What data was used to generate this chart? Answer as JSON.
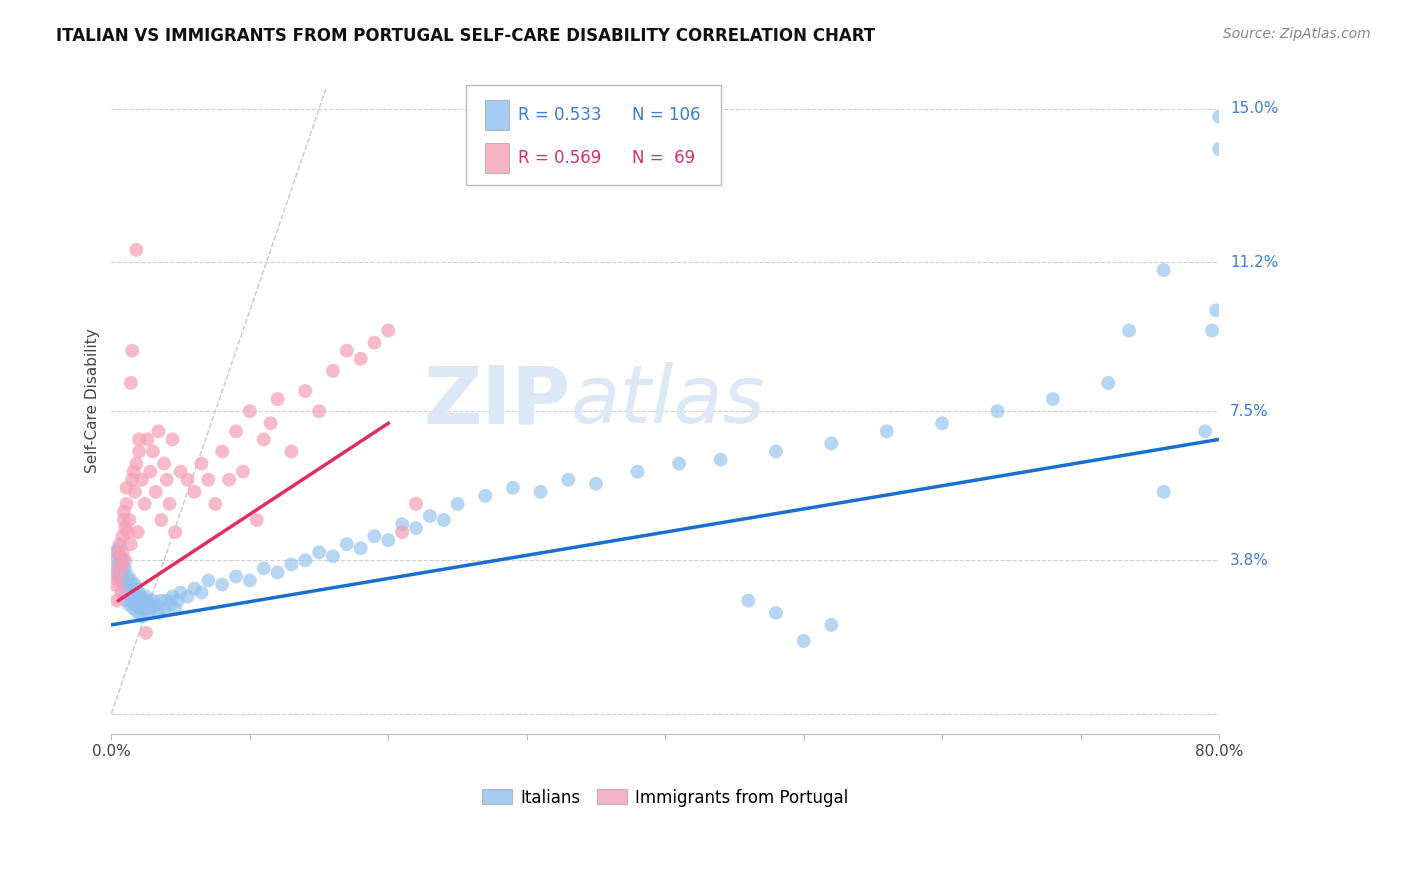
{
  "title": "ITALIAN VS IMMIGRANTS FROM PORTUGAL SELF-CARE DISABILITY CORRELATION CHART",
  "source": "Source: ZipAtlas.com",
  "ylabel": "Self-Care Disability",
  "xlim": [
    0.0,
    0.8
  ],
  "ylim": [
    -0.005,
    0.16
  ],
  "yticks": [
    0.0,
    0.038,
    0.075,
    0.112,
    0.15
  ],
  "ytick_labels": [
    "",
    "3.8%",
    "7.5%",
    "11.2%",
    "15.0%"
  ],
  "xtick_positions": [
    0.0,
    0.1,
    0.2,
    0.3,
    0.4,
    0.5,
    0.6,
    0.7,
    0.8
  ],
  "xtick_labels": [
    "0.0%",
    "",
    "",
    "",
    "",
    "",
    "",
    "",
    "80.0%"
  ],
  "grid_color": "#d0d0d0",
  "background_color": "#ffffff",
  "blue_color": "#90C0EE",
  "pink_color": "#F4A0B8",
  "blue_line_color": "#1A6FCC",
  "pink_line_color": "#DD3060",
  "diagonal_color": "#c8c8c8",
  "watermark_color": "#DCE8F5",
  "legend_r_blue": "0.533",
  "legend_n_blue": "106",
  "legend_r_pink": "0.569",
  "legend_n_pink": " 69",
  "label_blue": "Italians",
  "label_pink": "Immigrants from Portugal",
  "blue_scatter_x": [
    0.002,
    0.003,
    0.004,
    0.005,
    0.005,
    0.006,
    0.006,
    0.007,
    0.007,
    0.008,
    0.008,
    0.009,
    0.009,
    0.01,
    0.01,
    0.011,
    0.011,
    0.012,
    0.012,
    0.013,
    0.013,
    0.014,
    0.014,
    0.015,
    0.015,
    0.016,
    0.016,
    0.017,
    0.017,
    0.018,
    0.018,
    0.019,
    0.019,
    0.02,
    0.02,
    0.021,
    0.021,
    0.022,
    0.022,
    0.023,
    0.024,
    0.025,
    0.026,
    0.027,
    0.028,
    0.029,
    0.03,
    0.032,
    0.034,
    0.036,
    0.038,
    0.04,
    0.042,
    0.044,
    0.046,
    0.048,
    0.05,
    0.055,
    0.06,
    0.065,
    0.07,
    0.08,
    0.09,
    0.1,
    0.11,
    0.12,
    0.13,
    0.14,
    0.15,
    0.16,
    0.17,
    0.18,
    0.19,
    0.2,
    0.21,
    0.22,
    0.23,
    0.24,
    0.25,
    0.27,
    0.29,
    0.31,
    0.33,
    0.35,
    0.38,
    0.41,
    0.44,
    0.48,
    0.52,
    0.56,
    0.6,
    0.64,
    0.68,
    0.72,
    0.76,
    0.79,
    0.795,
    0.798,
    0.8,
    0.8,
    0.735,
    0.76,
    0.5,
    0.52,
    0.48,
    0.46
  ],
  "blue_scatter_y": [
    0.038,
    0.04,
    0.035,
    0.041,
    0.037,
    0.039,
    0.035,
    0.036,
    0.033,
    0.038,
    0.036,
    0.034,
    0.032,
    0.036,
    0.03,
    0.032,
    0.028,
    0.03,
    0.034,
    0.031,
    0.027,
    0.03,
    0.033,
    0.028,
    0.031,
    0.029,
    0.026,
    0.032,
    0.028,
    0.031,
    0.027,
    0.029,
    0.025,
    0.028,
    0.03,
    0.026,
    0.029,
    0.027,
    0.024,
    0.028,
    0.026,
    0.029,
    0.028,
    0.025,
    0.027,
    0.026,
    0.028,
    0.027,
    0.025,
    0.028,
    0.026,
    0.028,
    0.027,
    0.029,
    0.026,
    0.028,
    0.03,
    0.029,
    0.031,
    0.03,
    0.033,
    0.032,
    0.034,
    0.033,
    0.036,
    0.035,
    0.037,
    0.038,
    0.04,
    0.039,
    0.042,
    0.041,
    0.044,
    0.043,
    0.047,
    0.046,
    0.049,
    0.048,
    0.052,
    0.054,
    0.056,
    0.055,
    0.058,
    0.057,
    0.06,
    0.062,
    0.063,
    0.065,
    0.067,
    0.07,
    0.072,
    0.075,
    0.078,
    0.082,
    0.055,
    0.07,
    0.095,
    0.1,
    0.148,
    0.14,
    0.095,
    0.11,
    0.018,
    0.022,
    0.025,
    0.028
  ],
  "pink_scatter_x": [
    0.002,
    0.003,
    0.004,
    0.005,
    0.005,
    0.006,
    0.006,
    0.007,
    0.007,
    0.008,
    0.008,
    0.009,
    0.009,
    0.01,
    0.01,
    0.011,
    0.011,
    0.012,
    0.013,
    0.014,
    0.015,
    0.016,
    0.017,
    0.018,
    0.019,
    0.02,
    0.022,
    0.024,
    0.026,
    0.028,
    0.03,
    0.032,
    0.034,
    0.036,
    0.038,
    0.04,
    0.042,
    0.044,
    0.046,
    0.05,
    0.055,
    0.06,
    0.065,
    0.07,
    0.075,
    0.08,
    0.085,
    0.09,
    0.095,
    0.1,
    0.105,
    0.11,
    0.115,
    0.12,
    0.13,
    0.14,
    0.15,
    0.16,
    0.17,
    0.18,
    0.19,
    0.2,
    0.21,
    0.22,
    0.014,
    0.018,
    0.015,
    0.02,
    0.025
  ],
  "pink_scatter_y": [
    0.032,
    0.035,
    0.028,
    0.04,
    0.033,
    0.038,
    0.042,
    0.036,
    0.03,
    0.044,
    0.04,
    0.048,
    0.05,
    0.046,
    0.038,
    0.052,
    0.056,
    0.045,
    0.048,
    0.042,
    0.058,
    0.06,
    0.055,
    0.062,
    0.045,
    0.065,
    0.058,
    0.052,
    0.068,
    0.06,
    0.065,
    0.055,
    0.07,
    0.048,
    0.062,
    0.058,
    0.052,
    0.068,
    0.045,
    0.06,
    0.058,
    0.055,
    0.062,
    0.058,
    0.052,
    0.065,
    0.058,
    0.07,
    0.06,
    0.075,
    0.048,
    0.068,
    0.072,
    0.078,
    0.065,
    0.08,
    0.075,
    0.085,
    0.09,
    0.088,
    0.092,
    0.095,
    0.045,
    0.052,
    0.082,
    0.115,
    0.09,
    0.068,
    0.02
  ],
  "blue_line": {
    "x0": 0.0,
    "y0": 0.022,
    "x1": 0.8,
    "y1": 0.068
  },
  "pink_line": {
    "x0": 0.005,
    "y0": 0.028,
    "x1": 0.2,
    "y1": 0.072
  },
  "diag_line": {
    "x0": 0.0,
    "y0": 0.0,
    "x1": 0.155,
    "y1": 0.155
  },
  "title_fontsize": 12,
  "source_fontsize": 10,
  "axis_label_fontsize": 11,
  "tick_fontsize": 11,
  "legend_fontsize": 12,
  "ylabel_color": "#444444",
  "ytick_label_color": "#3A7FCC",
  "xtick_label_color": "#444444",
  "legend_box_color": "#3A7FCC",
  "legend_pink_color": "#DD3060"
}
